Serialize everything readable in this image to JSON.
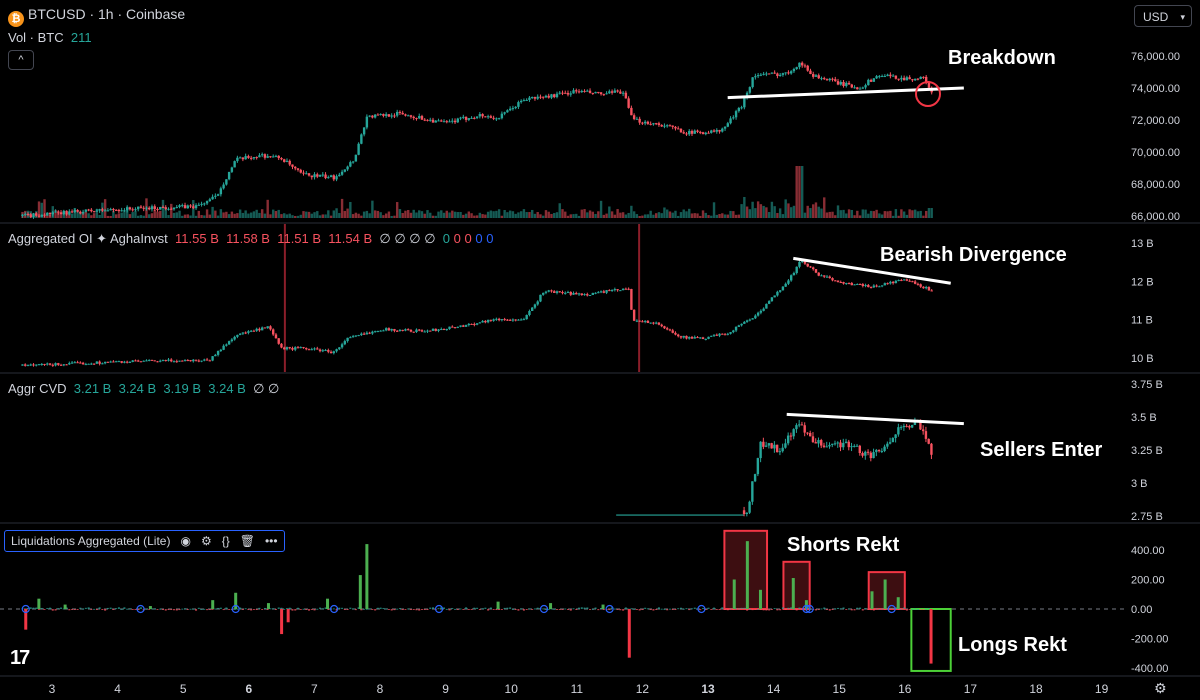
{
  "header": {
    "symbol": "BTCUSD · 1h · Coinbase",
    "vol_label": "Vol · BTC",
    "vol_value": "211",
    "currency": "USD",
    "collapse": "^"
  },
  "oi_legend": {
    "name": "Aggregated OI ✦ AghaInvst",
    "values": [
      "11.55 B",
      "11.58 B",
      "11.51 B",
      "11.54 B"
    ],
    "tail": "∅ ∅ ∅ ∅",
    "zeros": [
      "0",
      "0",
      "0",
      "0",
      "0"
    ]
  },
  "cvd_legend": {
    "name": "Aggr CVD",
    "values": [
      "3.21 B",
      "3.24 B",
      "3.19 B",
      "3.24 B"
    ],
    "tail": "∅ ∅"
  },
  "liq_legend": {
    "name": "Liquidations Aggregated (Lite)",
    "icons": [
      "eye-icon",
      "settings-icon",
      "braces-icon",
      "trash-icon",
      "more-icon"
    ]
  },
  "annotations": {
    "breakdown": "Breakdown",
    "bearish": "Bearish Divergence",
    "sellers": "Sellers Enter",
    "shorts": "Shorts Rekt",
    "longs": "Longs Rekt"
  },
  "colors": {
    "up": "#26a69a",
    "down": "#f7525f",
    "bg": "#000000",
    "grid": "#2a2e39",
    "box_red": "#f23645",
    "box_green": "#4caf50"
  },
  "chart_data": [
    {
      "type": "candlestick",
      "title": "BTCUSD · 1h · Coinbase",
      "x_ticks": [
        "3",
        "4",
        "5",
        "6",
        "7",
        "8",
        "9",
        "10",
        "11",
        "12",
        "13",
        "14",
        "15",
        "16",
        "17",
        "18",
        "19"
      ],
      "ylim": [
        65500,
        76800
      ],
      "y_ticks": [
        "76,000.00",
        "74,000.00",
        "72,000.00",
        "70,000.00",
        "68,000.00",
        "66,000.00"
      ],
      "y_tick_values": [
        76000,
        74000,
        72000,
        70000,
        68000,
        66000
      ],
      "anchors": [
        [
          2.55,
          66000
        ],
        [
          3.5,
          66300
        ],
        [
          4.5,
          66500
        ],
        [
          5.2,
          66600
        ],
        [
          5.5,
          67200
        ],
        [
          5.8,
          69500
        ],
        [
          6.2,
          69800
        ],
        [
          6.5,
          69600
        ],
        [
          6.8,
          68600
        ],
        [
          7.3,
          68400
        ],
        [
          7.6,
          69500
        ],
        [
          7.8,
          72200
        ],
        [
          8.3,
          72400
        ],
        [
          9.0,
          71800
        ],
        [
          9.5,
          72300
        ],
        [
          9.8,
          72100
        ],
        [
          10.2,
          73300
        ],
        [
          10.6,
          73500
        ],
        [
          11.0,
          73800
        ],
        [
          11.4,
          73600
        ],
        [
          11.7,
          73800
        ],
        [
          11.85,
          72000
        ],
        [
          12.3,
          71700
        ],
        [
          12.7,
          71200
        ],
        [
          13.2,
          71300
        ],
        [
          13.5,
          72800
        ],
        [
          13.7,
          74800
        ],
        [
          14.2,
          74900
        ],
        [
          14.4,
          75600
        ],
        [
          14.6,
          74800
        ],
        [
          15.0,
          74300
        ],
        [
          15.3,
          74000
        ],
        [
          15.6,
          74800
        ],
        [
          16.0,
          74600
        ],
        [
          16.3,
          74600
        ],
        [
          16.42,
          73700
        ]
      ],
      "volume": {
        "label": "Vol · BTC",
        "last": 211
      },
      "trendline": {
        "from": [
          13.3,
          73400
        ],
        "to": [
          16.9,
          74000
        ]
      }
    },
    {
      "type": "candlestick",
      "title": "Aggregated OI ✦ AghaInvst",
      "ylim": [
        9.7,
        13.25
      ],
      "y_ticks": [
        "13 B",
        "12 B",
        "11 B",
        "10 B"
      ],
      "y_tick_values": [
        13,
        12,
        11,
        10
      ],
      "anchors": [
        [
          2.55,
          9.8
        ],
        [
          4.0,
          9.9
        ],
        [
          5.4,
          9.95
        ],
        [
          5.8,
          10.6
        ],
        [
          6.3,
          10.8
        ],
        [
          6.5,
          10.25
        ],
        [
          6.9,
          10.25
        ],
        [
          7.3,
          10.15
        ],
        [
          7.5,
          10.5
        ],
        [
          8.0,
          10.75
        ],
        [
          8.7,
          10.7
        ],
        [
          9.3,
          10.85
        ],
        [
          9.7,
          11.0
        ],
        [
          10.2,
          11.0
        ],
        [
          10.5,
          11.75
        ],
        [
          11.1,
          11.65
        ],
        [
          11.5,
          11.75
        ],
        [
          11.8,
          11.8
        ],
        [
          11.85,
          11.0
        ],
        [
          12.2,
          10.9
        ],
        [
          12.6,
          10.55
        ],
        [
          12.9,
          10.5
        ],
        [
          13.3,
          10.65
        ],
        [
          13.8,
          11.2
        ],
        [
          14.3,
          12.2
        ],
        [
          14.42,
          12.55
        ],
        [
          14.7,
          12.15
        ],
        [
          15.1,
          11.95
        ],
        [
          15.5,
          11.85
        ],
        [
          16.0,
          12.05
        ],
        [
          16.42,
          11.75
        ]
      ],
      "trendline": {
        "from": [
          14.3,
          12.6
        ],
        "to": [
          16.7,
          11.95
        ]
      },
      "spikes_at": [
        6.55,
        11.95
      ]
    },
    {
      "type": "candlestick",
      "title": "Aggr CVD",
      "ylim": [
        2.71,
        3.81
      ],
      "y_ticks": [
        "3.75 B",
        "3.5 B",
        "3.25 B",
        "3 B",
        "2.75 B"
      ],
      "y_tick_values": [
        3.75,
        3.5,
        3.25,
        3,
        2.75
      ],
      "anchors": [
        [
          11.6,
          2.76
        ],
        [
          13.3,
          2.76
        ],
        [
          13.6,
          2.8
        ],
        [
          13.8,
          3.3
        ],
        [
          14.1,
          3.25
        ],
        [
          14.4,
          3.45
        ],
        [
          14.6,
          3.3
        ],
        [
          14.9,
          3.3
        ],
        [
          15.1,
          3.3
        ],
        [
          15.5,
          3.2
        ],
        [
          15.8,
          3.3
        ],
        [
          15.9,
          3.45
        ],
        [
          16.2,
          3.45
        ],
        [
          16.42,
          3.22
        ]
      ],
      "trendline": {
        "from": [
          14.2,
          3.52
        ],
        "to": [
          16.9,
          3.45
        ]
      }
    },
    {
      "type": "bar",
      "title": "Liquidations Aggregated (Lite)",
      "ylim": [
        -470,
        500
      ],
      "y_ticks": [
        "400.00",
        "200.00",
        "0.00",
        "-200.00",
        "-400.00"
      ],
      "y_tick_values": [
        400,
        200,
        0,
        -200,
        -400
      ],
      "bars": [
        [
          2.8,
          70
        ],
        [
          3.2,
          30
        ],
        [
          4.5,
          20
        ],
        [
          5.45,
          60
        ],
        [
          5.8,
          110
        ],
        [
          6.3,
          40
        ],
        [
          7.2,
          70
        ],
        [
          7.8,
          440
        ],
        [
          7.7,
          230
        ],
        [
          9.8,
          50
        ],
        [
          10.6,
          40
        ],
        [
          11.4,
          30
        ],
        [
          13.4,
          200
        ],
        [
          13.6,
          460
        ],
        [
          13.8,
          130
        ],
        [
          14.3,
          210
        ],
        [
          14.5,
          60
        ],
        [
          15.5,
          120
        ],
        [
          15.7,
          200
        ],
        [
          15.9,
          80
        ],
        [
          2.6,
          -140
        ],
        [
          6.5,
          -170
        ],
        [
          6.6,
          -90
        ],
        [
          11.8,
          -330
        ],
        [
          16.4,
          -370
        ]
      ],
      "circles_at": [
        2.6,
        4.35,
        5.8,
        7.3,
        8.9,
        10.5,
        11.5,
        12.9,
        14.5,
        14.55,
        15.8
      ],
      "boxes": [
        {
          "from": [
            13.25,
            0
          ],
          "to": [
            13.9,
            530
          ],
          "label": "Shorts Rekt"
        },
        {
          "from": [
            14.15,
            0
          ],
          "to": [
            14.55,
            320
          ],
          "label": ""
        },
        {
          "from": [
            15.45,
            0
          ],
          "to": [
            16.0,
            250
          ],
          "label": ""
        },
        {
          "from": [
            16.1,
            0
          ],
          "to": [
            16.7,
            -420
          ],
          "label": "Longs Rekt"
        }
      ]
    }
  ]
}
